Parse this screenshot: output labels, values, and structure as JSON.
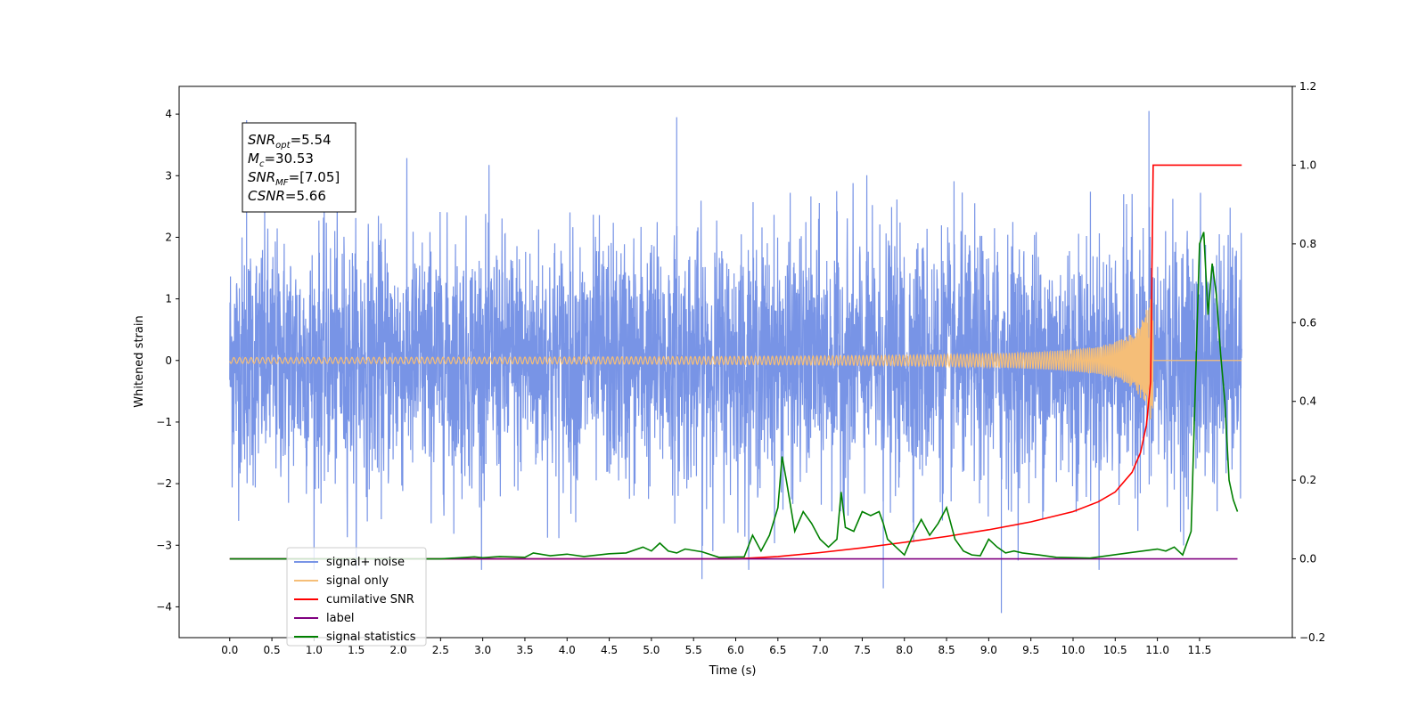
{
  "chart_data": {
    "type": "line",
    "xlabel": "Time (s)",
    "ylabel": "Whitened strain",
    "xlim": [
      -0.6,
      12.6
    ],
    "ylim": [
      -4.5,
      4.45
    ],
    "y2lim": [
      -0.2,
      1.2
    ],
    "x_ticks": [
      0.0,
      0.5,
      1.0,
      1.5,
      2.0,
      2.5,
      3.0,
      3.5,
      4.0,
      4.5,
      5.0,
      5.5,
      6.0,
      6.5,
      7.0,
      7.5,
      8.0,
      8.5,
      9.0,
      9.5,
      10.0,
      10.5,
      11.0,
      11.5
    ],
    "x_tick_labels": [
      "0.0",
      "0.5",
      "1.0",
      "1.5",
      "2.0",
      "2.5",
      "3.0",
      "3.5",
      "4.0",
      "4.5",
      "5.0",
      "5.5",
      "6.0",
      "6.5",
      "7.0",
      "7.5",
      "8.0",
      "8.5",
      "9.0",
      "9.5",
      "10.0",
      "10.5",
      "11.0",
      "11.5"
    ],
    "y_ticks": [
      -4,
      -3,
      -2,
      -1,
      0,
      1,
      2,
      3,
      4
    ],
    "y_tick_labels": [
      "−4",
      "−3",
      "−2",
      "−1",
      "0",
      "1",
      "2",
      "3",
      "4"
    ],
    "y2_ticks": [
      -0.2,
      0.0,
      0.2,
      0.4,
      0.6,
      0.8,
      1.0,
      1.2
    ],
    "y2_tick_labels": [
      "−0.2",
      "0.0",
      "0.2",
      "0.4",
      "0.6",
      "0.8",
      "1.0",
      "1.2"
    ],
    "grid": false,
    "legend_position": "lower-left",
    "annotation": {
      "lines": [
        {
          "base": "SNR",
          "sub": "opt",
          "value": "=5.54"
        },
        {
          "base": "M",
          "sub": "c",
          "value": "=30.53"
        },
        {
          "base": "SNR",
          "sub": "MF",
          "value": "=[7.05]"
        },
        {
          "base": "CSNR",
          "sub": "",
          "value": "=5.66"
        }
      ]
    },
    "series": [
      {
        "name": "signal+ noise",
        "axis": "left",
        "color": "#7894e6",
        "kind": "noise",
        "x_start": 0.0,
        "x_end": 12.0,
        "spread_sd": 1.05,
        "extreme_peaks": [
          [
            0.2,
            3.9
          ],
          [
            5.3,
            3.95
          ],
          [
            10.9,
            4.05
          ],
          [
            9.15,
            -4.1
          ],
          [
            7.75,
            -3.7
          ],
          [
            5.6,
            -3.55
          ]
        ]
      },
      {
        "name": "signal only",
        "axis": "left",
        "color": "#f5be78",
        "kind": "chirp",
        "x_start": 0.0,
        "x_end": 12.0,
        "merger_time": 10.95,
        "peak_amplitude": 1.5
      },
      {
        "name": "cumilative SNR",
        "axis": "right",
        "color": "#ff0000",
        "x": [
          0.0,
          6.0,
          6.5,
          7.0,
          7.5,
          8.0,
          8.5,
          9.0,
          9.5,
          10.0,
          10.3,
          10.5,
          10.7,
          10.8,
          10.87,
          10.92,
          10.95,
          12.0
        ],
        "y": [
          0.0,
          0.0,
          0.006,
          0.016,
          0.028,
          0.042,
          0.057,
          0.074,
          0.094,
          0.12,
          0.145,
          0.17,
          0.22,
          0.27,
          0.34,
          0.45,
          1.0,
          1.0
        ]
      },
      {
        "name": "label",
        "axis": "right",
        "color": "#800080",
        "x": [
          0.0,
          11.95
        ],
        "y": [
          0.0,
          0.0
        ]
      },
      {
        "name": "signal statistics",
        "axis": "right",
        "color": "#008000",
        "x": [
          0.0,
          2.5,
          2.9,
          3.0,
          3.2,
          3.5,
          3.6,
          3.8,
          4.0,
          4.2,
          4.5,
          4.7,
          4.9,
          5.0,
          5.1,
          5.2,
          5.3,
          5.4,
          5.6,
          5.8,
          6.1,
          6.2,
          6.3,
          6.4,
          6.5,
          6.55,
          6.6,
          6.7,
          6.8,
          6.9,
          7.0,
          7.1,
          7.2,
          7.25,
          7.3,
          7.4,
          7.5,
          7.6,
          7.7,
          7.75,
          7.8,
          7.9,
          8.0,
          8.1,
          8.2,
          8.3,
          8.4,
          8.5,
          8.6,
          8.7,
          8.8,
          8.9,
          9.0,
          9.1,
          9.2,
          9.3,
          9.4,
          9.6,
          9.8,
          10.2,
          11.0,
          11.1,
          11.2,
          11.3,
          11.4,
          11.5,
          11.55,
          11.6,
          11.65,
          11.7,
          11.75,
          11.8,
          11.85,
          11.9,
          11.95
        ],
        "y": [
          0.0,
          0.0,
          0.005,
          0.003,
          0.006,
          0.004,
          0.015,
          0.008,
          0.012,
          0.006,
          0.013,
          0.015,
          0.03,
          0.02,
          0.04,
          0.02,
          0.015,
          0.025,
          0.018,
          0.004,
          0.005,
          0.06,
          0.02,
          0.06,
          0.13,
          0.26,
          0.2,
          0.07,
          0.12,
          0.09,
          0.05,
          0.03,
          0.05,
          0.17,
          0.08,
          0.07,
          0.12,
          0.11,
          0.12,
          0.09,
          0.05,
          0.03,
          0.01,
          0.06,
          0.1,
          0.06,
          0.09,
          0.13,
          0.05,
          0.02,
          0.01,
          0.008,
          0.05,
          0.03,
          0.015,
          0.02,
          0.015,
          0.01,
          0.004,
          0.002,
          0.025,
          0.02,
          0.03,
          0.01,
          0.07,
          0.8,
          0.83,
          0.62,
          0.75,
          0.67,
          0.52,
          0.4,
          0.2,
          0.15,
          0.12
        ]
      }
    ]
  }
}
